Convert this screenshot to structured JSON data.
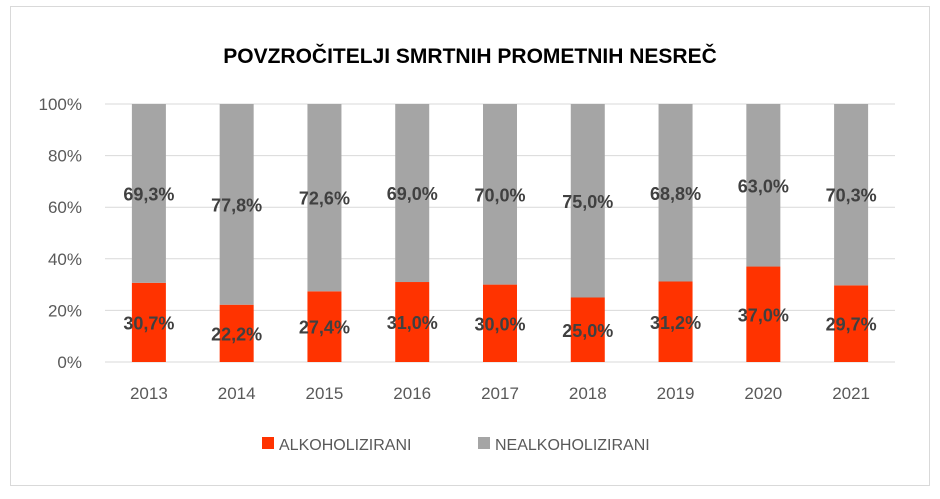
{
  "chart_data": {
    "type": "bar",
    "stacked": true,
    "title": "POVZROČITELJI SMRTNIH PROMETNIH NESREČ",
    "categories": [
      "2013",
      "2014",
      "2015",
      "2016",
      "2017",
      "2018",
      "2019",
      "2020",
      "2021"
    ],
    "series": [
      {
        "name": "ALKOHOLIZIRANI",
        "color": "#FF3300",
        "values": [
          30.7,
          22.2,
          27.4,
          31.0,
          30.0,
          25.0,
          31.2,
          37.0,
          29.7
        ],
        "labels": [
          "30,7%",
          "22,2%",
          "27,4%",
          "31,0%",
          "30,0%",
          "25,0%",
          "31,2%",
          "37,0%",
          "29,7%"
        ]
      },
      {
        "name": "NEALKOHOLIZIRANI",
        "color": "#A5A5A5",
        "values": [
          69.3,
          77.8,
          72.6,
          69.0,
          70.0,
          75.0,
          68.8,
          63.0,
          70.3
        ],
        "labels": [
          "69,3%",
          "77,8%",
          "72,6%",
          "69,0%",
          "70,0%",
          "75,0%",
          "68,8%",
          "63,0%",
          "70,3%"
        ]
      }
    ],
    "yticks": [
      "0%",
      "20%",
      "40%",
      "60%",
      "80%",
      "100%"
    ],
    "ylim": [
      0,
      100
    ],
    "grid": true,
    "legend": "bottom"
  }
}
